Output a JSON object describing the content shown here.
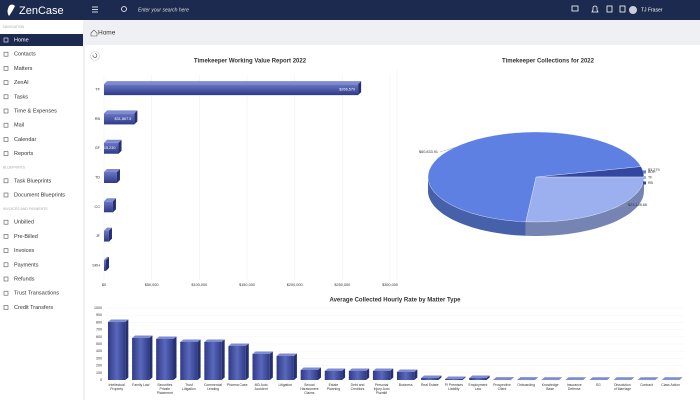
{
  "header": {
    "logo": "ZenCase",
    "search_placeholder": "Enter your search here",
    "user": "TJ Fraser"
  },
  "sidebar": {
    "sections": [
      {
        "title": "NAVIGATION",
        "items": [
          "Home",
          "Contacts",
          "Matters",
          "ZenAI",
          "Tasks",
          "Time & Expenses",
          "Mail",
          "Calendar",
          "Reports"
        ]
      },
      {
        "title": "BLUEPRINTS",
        "items": [
          "Task Blueprints",
          "Document Blueprints"
        ]
      },
      {
        "title": "INVOICES AND PAYMENTS",
        "items": [
          "Unbilled",
          "Pre-Billed",
          "Invoices",
          "Payments",
          "Refunds",
          "Trust Transactions",
          "Credit Transfers"
        ]
      }
    ],
    "active": "Home"
  },
  "page": {
    "breadcrumb": "Home"
  },
  "chart_data": [
    {
      "type": "hbar",
      "title": "Timekeeper Working Value Report 2022",
      "categories": [
        "TF",
        "RB",
        "GF",
        "TD",
        "CC",
        "JF",
        "SKH"
      ],
      "values": [
        266570,
        31867.5,
        15230,
        13600,
        9400,
        5200,
        2100
      ],
      "value_labels": [
        "$266,570",
        "$31,867.5",
        "$15,230",
        null,
        null,
        null,
        null
      ],
      "color": "#3d4a9e",
      "xlim": [
        0,
        300000
      ],
      "xticks": [
        {
          "value": 0,
          "label": "$0"
        },
        {
          "value": 50000,
          "label": "$50,000"
        },
        {
          "value": 100000,
          "label": "$100,000"
        },
        {
          "value": 150000,
          "label": "$150,000"
        },
        {
          "value": 200000,
          "label": "$200,000"
        },
        {
          "value": 250000,
          "label": "$250,000"
        },
        {
          "value": 300000,
          "label": "$300,000"
        }
      ],
      "grid": true
    },
    {
      "type": "pie3d",
      "title": "Timekeeper Collections for 2022",
      "categories": [
        "RB",
        "TF",
        "BDH"
      ],
      "values": [
        3279,
        23128.66,
        60833.91
      ],
      "value_labels": [
        "$3,279",
        "$23,128.66",
        "$60,833.91"
      ],
      "colors": [
        "#34479f",
        "#9cb0ef",
        "#5d80e2"
      ],
      "legend": "right"
    },
    {
      "type": "bar",
      "title": "Average Collected Hourly Rate by Matter Type",
      "categories": [
        "Intellectual Property",
        "Family Law",
        "Securities Private Placement",
        "Trust Litigation",
        "Commercial Lending",
        "Pharma Case",
        "MD Auto Accident",
        "Litigation",
        "Sexual Harassment Claims",
        "Estate Planning",
        "Debt and Creditors",
        "Personal Injury Auto Plaintiff",
        "Business",
        "Real Estate",
        "PI Premises Liability",
        "Employment Law",
        "Prospective Client",
        "Onboarding",
        "Knowledge Base",
        "Insurance Defense",
        "SG",
        "Dissolution of Marriage",
        "Contract",
        "Class Action"
      ],
      "values": [
        805,
        583,
        570,
        528,
        528,
        472,
        361,
        333,
        139,
        125,
        125,
        125,
        111,
        28,
        14,
        28,
        5,
        5,
        4,
        4,
        4,
        3,
        3,
        3
      ],
      "color": "#3d4a9e",
      "ylim": [
        0,
        1000
      ],
      "yticks": [
        0,
        100,
        200,
        300,
        400,
        500,
        600,
        700,
        800,
        900,
        1000
      ],
      "grid": true
    }
  ]
}
